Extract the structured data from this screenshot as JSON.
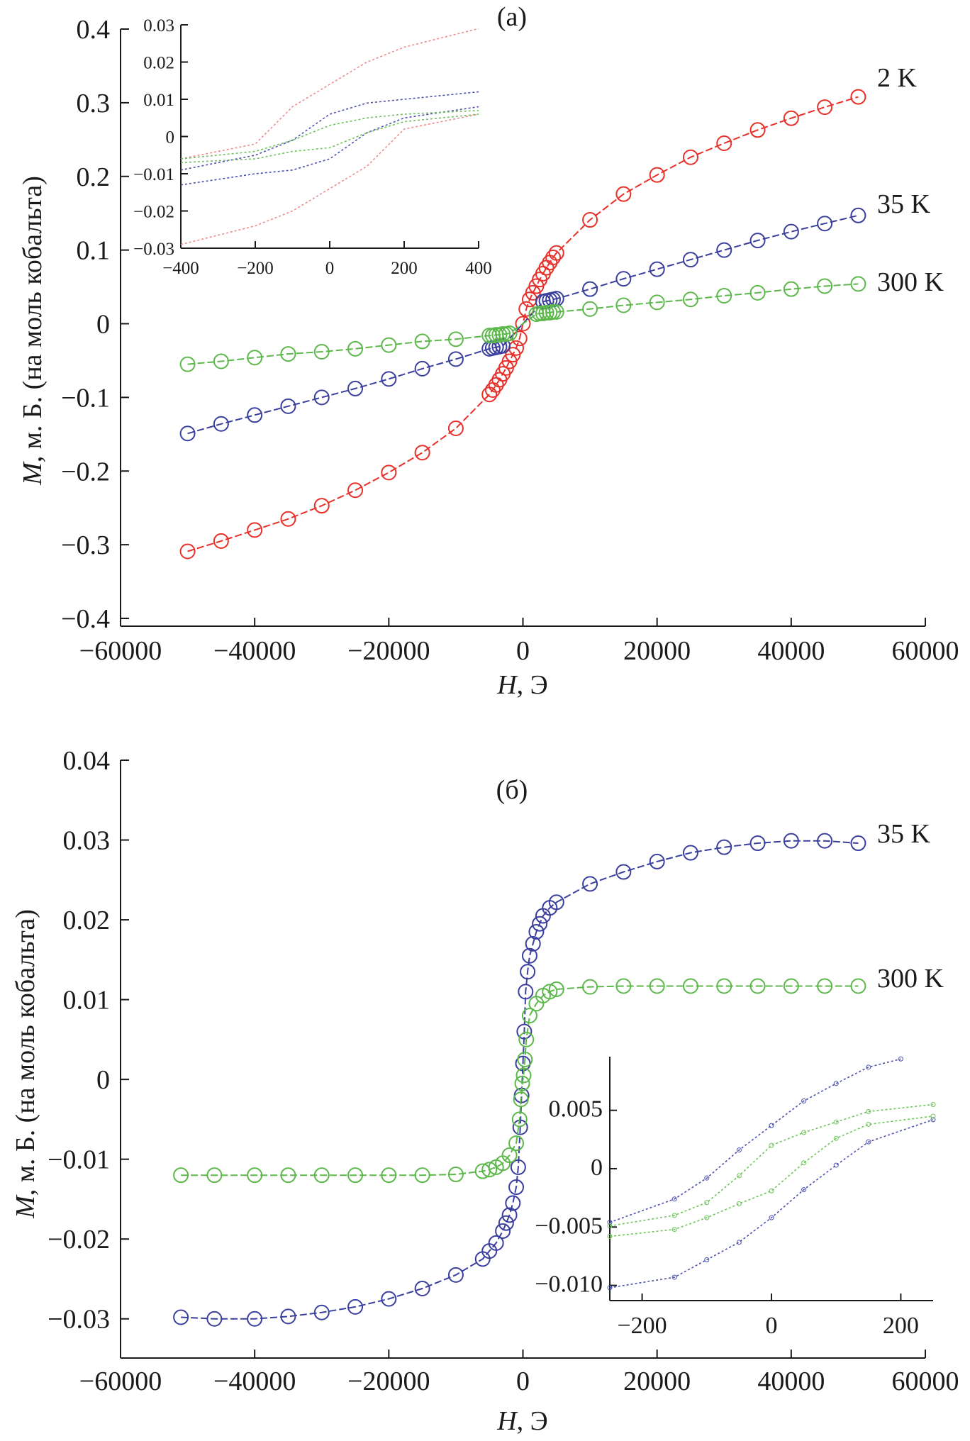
{
  "chart_data": [
    {
      "type": "line",
      "panel_label": "(a)",
      "xlabel_var": "H",
      "xlabel_unit": ", Э",
      "ylabel_var": "M",
      "ylabel_unit": ", м. Б. (на моль кобальта)",
      "xlim": [
        -60000,
        60000
      ],
      "ylim": [
        -0.4,
        0.4
      ],
      "xticks": [
        -60000,
        -40000,
        -20000,
        0,
        20000,
        40000,
        60000
      ],
      "xtick_labels": [
        "−60000",
        "−40000",
        "−20000",
        "0",
        "20000",
        "40000",
        "60000"
      ],
      "yticks": [
        0.4,
        0.3,
        0.2,
        0.1,
        0,
        -0.1,
        -0.2,
        -0.3,
        -0.4
      ],
      "ytick_labels": [
        "0.4",
        "0.3",
        "0.2",
        "0.1",
        "0",
        "−0.1",
        "−0.2",
        "−0.3",
        "−0.4"
      ],
      "grid": false,
      "series": [
        {
          "name": "2 K",
          "color": "#e8302a",
          "marker": "open-circle",
          "x": [
            -50000,
            -45000,
            -40000,
            -35000,
            -30000,
            -25000,
            -20000,
            -15000,
            -10000,
            -5000,
            -4500,
            -4000,
            -3500,
            -3000,
            -2500,
            -2000,
            -1500,
            -1000,
            -500,
            0,
            500,
            1000,
            1500,
            2000,
            2500,
            3000,
            3500,
            4000,
            4500,
            5000,
            10000,
            15000,
            20000,
            25000,
            30000,
            35000,
            40000,
            45000,
            50000
          ],
          "y": [
            -0.309,
            -0.295,
            -0.28,
            -0.265,
            -0.247,
            -0.226,
            -0.202,
            -0.175,
            -0.142,
            -0.096,
            -0.09,
            -0.083,
            -0.076,
            -0.068,
            -0.06,
            -0.051,
            -0.042,
            -0.033,
            -0.02,
            0.0,
            0.02,
            0.033,
            0.042,
            0.051,
            0.06,
            0.068,
            0.076,
            0.083,
            0.09,
            0.096,
            0.141,
            0.176,
            0.202,
            0.226,
            0.245,
            0.263,
            0.279,
            0.294,
            0.308
          ]
        },
        {
          "name": "35 K",
          "color": "#3a3f9e",
          "marker": "open-circle",
          "x": [
            -50000,
            -45000,
            -40000,
            -35000,
            -30000,
            -25000,
            -20000,
            -15000,
            -10000,
            -5000,
            -4500,
            -4000,
            -3500,
            -3000,
            3000,
            3500,
            4000,
            4500,
            5000,
            10000,
            15000,
            20000,
            25000,
            30000,
            35000,
            40000,
            45000,
            50000
          ],
          "y": [
            -0.149,
            -0.136,
            -0.124,
            -0.112,
            -0.1,
            -0.088,
            -0.075,
            -0.061,
            -0.048,
            -0.034,
            -0.033,
            -0.032,
            -0.031,
            -0.03,
            0.03,
            0.031,
            0.032,
            0.033,
            0.034,
            0.047,
            0.061,
            0.074,
            0.087,
            0.1,
            0.113,
            0.125,
            0.136,
            0.147
          ]
        },
        {
          "name": "300 K",
          "color": "#5cb84a",
          "marker": "open-circle",
          "x": [
            -50000,
            -45000,
            -40000,
            -35000,
            -30000,
            -25000,
            -20000,
            -15000,
            -10000,
            -5000,
            -4500,
            -4000,
            -3500,
            -3000,
            -2500,
            -2000,
            2000,
            2500,
            3000,
            3500,
            4000,
            4500,
            5000,
            10000,
            15000,
            20000,
            25000,
            30000,
            35000,
            40000,
            45000,
            50000
          ],
          "y": [
            -0.055,
            -0.051,
            -0.046,
            -0.041,
            -0.038,
            -0.034,
            -0.029,
            -0.024,
            -0.021,
            -0.016,
            -0.016,
            -0.015,
            -0.015,
            -0.014,
            -0.014,
            -0.013,
            0.013,
            0.014,
            0.014,
            0.015,
            0.015,
            0.016,
            0.016,
            0.02,
            0.025,
            0.029,
            0.033,
            0.038,
            0.042,
            0.047,
            0.051,
            0.054
          ]
        }
      ]
    },
    {
      "type": "line",
      "role": "inset",
      "xlim": [
        -400,
        400
      ],
      "ylim": [
        -0.03,
        0.03
      ],
      "xticks": [
        -400,
        -200,
        0,
        200,
        400
      ],
      "xtick_labels": [
        "−400",
        "−200",
        "0",
        "200",
        "400"
      ],
      "yticks": [
        0.03,
        0.02,
        0.01,
        0,
        -0.01,
        -0.02,
        -0.03
      ],
      "ytick_labels": [
        "0.03",
        "0.02",
        "0.01",
        "0",
        "−0.01",
        "−0.02",
        "−0.03"
      ],
      "grid": false,
      "series": [
        {
          "color": "#f08a8a",
          "branches": [
            {
              "x": [
                -400,
                -200,
                -100,
                0,
                100,
                200,
                400
              ],
              "y": [
                -0.006,
                -0.002,
                0.008,
                0.014,
                0.02,
                0.024,
                0.029
              ]
            },
            {
              "x": [
                -400,
                -200,
                -100,
                0,
                100,
                200,
                400
              ],
              "y": [
                -0.029,
                -0.024,
                -0.02,
                -0.014,
                -0.008,
                0.002,
                0.006
              ]
            }
          ]
        },
        {
          "color": "#4a4fb0",
          "branches": [
            {
              "x": [
                -400,
                -200,
                -100,
                0,
                100,
                200,
                400
              ],
              "y": [
                -0.009,
                -0.005,
                -0.001,
                0.006,
                0.009,
                0.01,
                0.012
              ]
            },
            {
              "x": [
                -400,
                -200,
                -100,
                0,
                100,
                200,
                400
              ],
              "y": [
                -0.013,
                -0.01,
                -0.009,
                -0.006,
                0.001,
                0.005,
                0.008
              ]
            }
          ]
        },
        {
          "color": "#6cc45a",
          "branches": [
            {
              "x": [
                -400,
                -200,
                -100,
                0,
                100,
                200,
                400
              ],
              "y": [
                -0.006,
                -0.004,
                -0.001,
                0.003,
                0.005,
                0.006,
                0.007
              ]
            },
            {
              "x": [
                -400,
                -200,
                -100,
                0,
                100,
                200,
                400
              ],
              "y": [
                -0.007,
                -0.006,
                -0.004,
                -0.003,
                0.001,
                0.004,
                0.006
              ]
            }
          ]
        }
      ]
    },
    {
      "type": "line",
      "panel_label": "(б)",
      "xlabel_var": "H",
      "xlabel_unit": ", Э",
      "ylabel_var": "M",
      "ylabel_unit": ", м. Б. (на моль кобальта)",
      "xlim": [
        -60000,
        60000
      ],
      "ylim": [
        -0.035,
        0.04
      ],
      "xticks": [
        -60000,
        -40000,
        -20000,
        0,
        20000,
        40000,
        60000
      ],
      "xtick_labels": [
        "−60000",
        "−40000",
        "−20000",
        "0",
        "20000",
        "40000",
        "60000"
      ],
      "yticks": [
        0.04,
        0.03,
        0.02,
        0.01,
        0,
        -0.01,
        -0.02,
        -0.03
      ],
      "ytick_labels": [
        "0.04",
        "0.03",
        "0.02",
        "0.01",
        "0",
        "−0.01",
        "−0.02",
        "−0.03"
      ],
      "grid": false,
      "series": [
        {
          "name": "35 K",
          "color": "#3a3f9e",
          "marker": "open-circle",
          "x": [
            -51000,
            -46000,
            -40000,
            -35000,
            -30000,
            -25000,
            -20000,
            -15000,
            -10000,
            -6000,
            -5000,
            -4000,
            -3000,
            -2500,
            -2000,
            -1500,
            -1000,
            -700,
            -400,
            -200,
            0,
            200,
            400,
            700,
            1000,
            1500,
            2000,
            2500,
            3000,
            4000,
            5000,
            10000,
            15000,
            20000,
            25000,
            30000,
            35000,
            40000,
            45000,
            50000
          ],
          "y": [
            -0.0298,
            -0.03,
            -0.03,
            -0.0297,
            -0.0292,
            -0.0285,
            -0.0275,
            -0.0262,
            -0.0245,
            -0.0225,
            -0.0215,
            -0.0205,
            -0.019,
            -0.018,
            -0.017,
            -0.0155,
            -0.0135,
            -0.011,
            -0.006,
            -0.002,
            0.002,
            0.006,
            0.011,
            0.0135,
            0.0155,
            0.017,
            0.0185,
            0.0195,
            0.0205,
            0.0215,
            0.0222,
            0.0245,
            0.026,
            0.0273,
            0.0284,
            0.0291,
            0.0296,
            0.0299,
            0.0299,
            0.0296
          ]
        },
        {
          "name": "300 K",
          "color": "#5cb84a",
          "marker": "open-circle",
          "x": [
            -51000,
            -46000,
            -40000,
            -35000,
            -30000,
            -25000,
            -20000,
            -15000,
            -10000,
            -6000,
            -5000,
            -4000,
            -3000,
            -2000,
            -1000,
            -500,
            -300,
            -100,
            100,
            300,
            500,
            1000,
            2000,
            3000,
            4000,
            5000,
            10000,
            15000,
            20000,
            25000,
            30000,
            35000,
            40000,
            45000,
            50000
          ],
          "y": [
            -0.012,
            -0.012,
            -0.012,
            -0.012,
            -0.012,
            -0.012,
            -0.012,
            -0.012,
            -0.0119,
            -0.0115,
            -0.0113,
            -0.011,
            -0.0105,
            -0.0095,
            -0.008,
            -0.005,
            -0.0025,
            -0.0005,
            0.0005,
            0.0025,
            0.005,
            0.008,
            0.0095,
            0.0105,
            0.011,
            0.0113,
            0.0116,
            0.0117,
            0.0117,
            0.0117,
            0.0117,
            0.0117,
            0.0117,
            0.0117,
            0.0117
          ]
        }
      ]
    },
    {
      "type": "line",
      "role": "inset",
      "xlim": [
        -250,
        250
      ],
      "ylim": [
        -0.0113,
        0.0096
      ],
      "xticks": [
        -200,
        0,
        200
      ],
      "xtick_labels": [
        "−200",
        "0",
        "200"
      ],
      "yticks": [
        0.005,
        0,
        -0.005,
        -0.01
      ],
      "ytick_labels": [
        "0.005",
        "0",
        "−0.005",
        "−0.010"
      ],
      "grid": false,
      "series": [
        {
          "color": "#4a4fb0",
          "branches": [
            {
              "x": [
                -250,
                -150,
                -100,
                -50,
                0,
                50,
                100,
                150,
                200
              ],
              "y": [
                -0.0046,
                -0.0026,
                -0.0008,
                0.0016,
                0.0037,
                0.0058,
                0.0073,
                0.0087,
                0.0094
              ]
            },
            {
              "x": [
                -250,
                -150,
                -100,
                -50,
                0,
                50,
                100,
                150,
                250
              ],
              "y": [
                -0.0102,
                -0.0093,
                -0.0078,
                -0.0063,
                -0.0042,
                -0.0018,
                0.0003,
                0.0023,
                0.0042
              ]
            }
          ]
        },
        {
          "color": "#6cc45a",
          "branches": [
            {
              "x": [
                -250,
                -150,
                -100,
                -50,
                0,
                50,
                100,
                150,
                250
              ],
              "y": [
                -0.0049,
                -0.004,
                -0.0029,
                -0.0006,
                0.002,
                0.0031,
                0.004,
                0.0049,
                0.0055
              ]
            },
            {
              "x": [
                -250,
                -150,
                -100,
                -50,
                0,
                50,
                100,
                150,
                250
              ],
              "y": [
                -0.0058,
                -0.0052,
                -0.0042,
                -0.003,
                -0.0019,
                0.0005,
                0.0026,
                0.0038,
                0.0045
              ]
            }
          ]
        }
      ]
    }
  ]
}
